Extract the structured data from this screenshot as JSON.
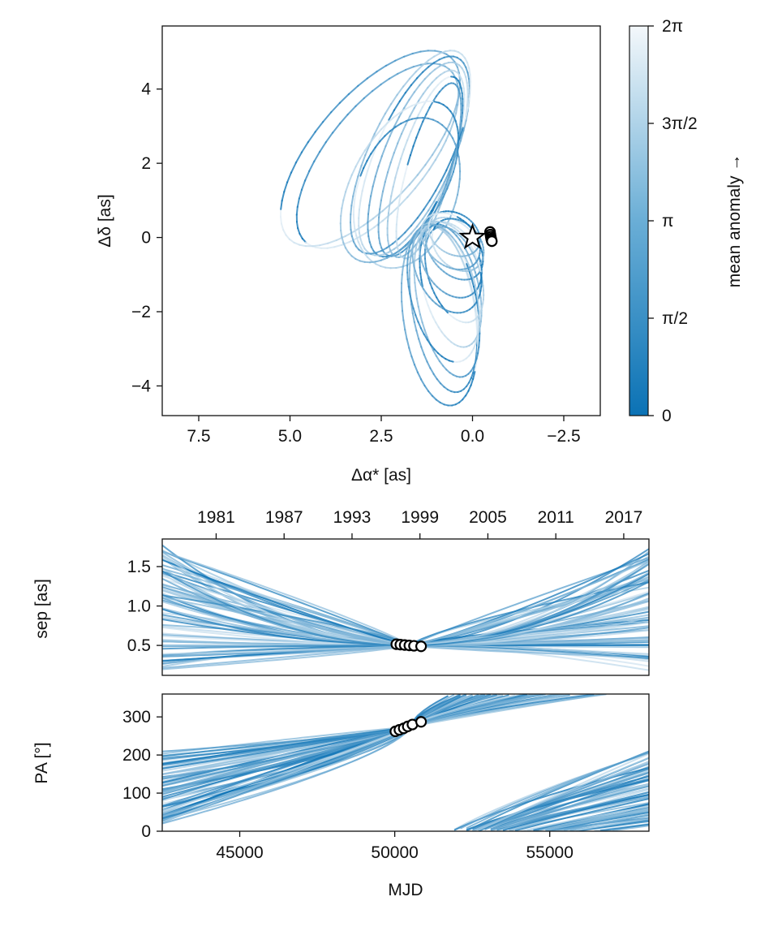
{
  "chart_data": [
    {
      "id": "orbit",
      "type": "line",
      "description_kind": "orbit sky-projection",
      "xlabel": "Δα* [as]",
      "ylabel": "Δδ [as]",
      "xlim": [
        8.5,
        -3.5
      ],
      "ylim": [
        -4.8,
        5.7
      ],
      "xticks": [
        7.5,
        5.0,
        2.5,
        0.0,
        -2.5
      ],
      "xtick_labels": [
        "7.5",
        "5.0",
        "2.5",
        "0.0",
        "−2.5"
      ],
      "yticks": [
        -4,
        -2,
        0,
        2,
        4
      ],
      "ytick_labels": [
        "−4",
        "−2",
        "0",
        "2",
        "4"
      ],
      "star": {
        "x": 0.0,
        "y": 0.0
      },
      "observations": [
        {
          "x": -0.48,
          "y": 0.15
        },
        {
          "x": -0.49,
          "y": 0.08
        },
        {
          "x": -0.5,
          "y": 0.02
        },
        {
          "x": -0.51,
          "y": -0.03
        },
        {
          "x": -0.52,
          "y": -0.07
        },
        {
          "x": -0.53,
          "y": -0.1
        }
      ],
      "orbits": [
        {
          "cx": 2.6,
          "cy": 2.2,
          "a": 3.05,
          "b": 1.35,
          "rot": -50
        },
        {
          "cx": 2.8,
          "cy": 2.4,
          "a": 3.3,
          "b": 1.45,
          "rot": -48
        },
        {
          "cx": 1.4,
          "cy": 2.0,
          "a": 2.65,
          "b": 0.8,
          "rot": -70
        },
        {
          "cx": 1.5,
          "cy": 2.1,
          "a": 2.8,
          "b": 0.95,
          "rot": -68
        },
        {
          "cx": 1.6,
          "cy": 2.2,
          "a": 2.9,
          "b": 1.05,
          "rot": -66
        },
        {
          "cx": 1.3,
          "cy": 1.9,
          "a": 2.55,
          "b": 0.7,
          "rot": -72
        },
        {
          "cx": 1.7,
          "cy": 2.3,
          "a": 3.0,
          "b": 1.1,
          "rot": -64
        },
        {
          "cx": 1.2,
          "cy": 1.8,
          "a": 2.45,
          "b": 0.6,
          "rot": -74
        },
        {
          "cx": 1.8,
          "cy": 1.2,
          "a": 2.1,
          "b": 1.35,
          "rot": -70
        },
        {
          "cx": 2.0,
          "cy": 1.5,
          "a": 2.4,
          "b": 1.25,
          "rot": -60
        },
        {
          "cx": 0.8,
          "cy": -1.9,
          "a": 2.3,
          "b": 0.85,
          "rot": 80
        },
        {
          "cx": 0.9,
          "cy": -2.1,
          "a": 2.45,
          "b": 1.0,
          "rot": 82
        },
        {
          "cx": 0.7,
          "cy": -1.7,
          "a": 2.1,
          "b": 0.8,
          "rot": 78
        },
        {
          "cx": 0.6,
          "cy": -1.3,
          "a": 1.7,
          "b": 0.75,
          "rot": 75
        },
        {
          "cx": 0.5,
          "cy": -1.0,
          "a": 1.35,
          "b": 0.7,
          "rot": 70
        },
        {
          "cx": 0.6,
          "cy": -0.6,
          "a": 1.1,
          "b": 0.75,
          "rot": 60
        },
        {
          "cx": 0.5,
          "cy": -0.3,
          "a": 0.95,
          "b": 0.65,
          "rot": 50
        },
        {
          "cx": 0.4,
          "cy": -0.2,
          "a": 0.8,
          "b": 0.6,
          "rot": 45
        },
        {
          "cx": 0.7,
          "cy": -0.8,
          "a": 1.3,
          "b": 0.85,
          "rot": 65
        },
        {
          "cx": 0.8,
          "cy": -1.5,
          "a": 1.9,
          "b": 0.9,
          "rot": 76
        },
        {
          "cx": 0.5,
          "cy": 0.1,
          "a": 0.75,
          "b": 0.55,
          "rot": 30
        },
        {
          "cx": 0.6,
          "cy": -0.1,
          "a": 0.9,
          "b": 0.65,
          "rot": 40
        }
      ]
    },
    {
      "id": "sep",
      "type": "line",
      "ylabel": "sep [as]",
      "xlim": [
        42500,
        58200
      ],
      "ylim": [
        0.12,
        1.85
      ],
      "yticks": [
        0.5,
        1.0,
        1.5
      ],
      "ytick_labels": [
        "0.5",
        "1.0",
        "1.5"
      ],
      "top_xticks_mjd": [
        44239,
        46431,
        48622,
        50813,
        53004,
        55196,
        57387
      ],
      "top_xtick_labels": [
        "1981",
        "1987",
        "1993",
        "1999",
        "2005",
        "2011",
        "2017"
      ],
      "node": {
        "x": 50500,
        "y": 0.5
      },
      "observations": [
        {
          "x": 50050,
          "y": 0.515
        },
        {
          "x": 50180,
          "y": 0.51
        },
        {
          "x": 50320,
          "y": 0.505
        },
        {
          "x": 50470,
          "y": 0.5
        },
        {
          "x": 50620,
          "y": 0.495
        },
        {
          "x": 50850,
          "y": 0.488
        }
      ]
    },
    {
      "id": "pa",
      "type": "line",
      "ylabel": "PA [°]",
      "xlabel": "MJD",
      "xlim": [
        42500,
        58200
      ],
      "ylim": [
        0,
        360
      ],
      "yticks": [
        0,
        100,
        200,
        300
      ],
      "ytick_labels": [
        "0",
        "100",
        "200",
        "300"
      ],
      "xticks": [
        45000,
        50000,
        55000
      ],
      "xtick_labels": [
        "45000",
        "50000",
        "55000"
      ],
      "node": {
        "x": 50500,
        "y": 274
      },
      "observations": [
        {
          "x": 50020,
          "y": 262
        },
        {
          "x": 50150,
          "y": 266
        },
        {
          "x": 50290,
          "y": 270
        },
        {
          "x": 50420,
          "y": 275
        },
        {
          "x": 50570,
          "y": 280
        },
        {
          "x": 50850,
          "y": 287
        }
      ]
    }
  ],
  "colorbar": {
    "label": "mean anomaly →",
    "tick_labels": [
      "0",
      "π/2",
      "π",
      "3π/2",
      "2π"
    ],
    "colors": {
      "low": "#0b72b5",
      "high": "#f4f8fb"
    }
  }
}
